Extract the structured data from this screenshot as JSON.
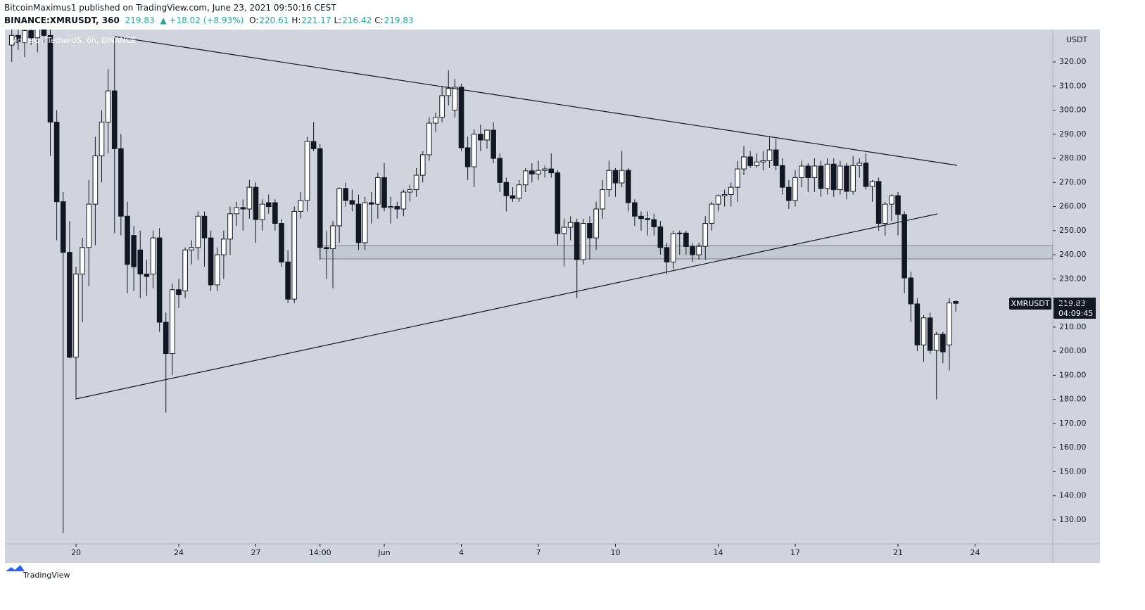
{
  "header": {
    "publisher": "BitcoinMaximus1 published on TradingView.com, June 23, 2021 09:50:16 CEST",
    "symbol": "BINANCE:XMRUSDT, 360",
    "last": "219.83",
    "change": "▲ +18.02 (+8.93%)",
    "ohlc": [
      {
        "label": "O:",
        "value": "220.61"
      },
      {
        "label": "H:",
        "value": "221.17"
      },
      {
        "label": "L:",
        "value": "216.42"
      },
      {
        "label": "C:",
        "value": "219.83"
      }
    ]
  },
  "chart_data": {
    "type": "candlestick",
    "legend": "Monero / TetherUS, 6h, BINANCE",
    "unit": "USDT",
    "price_tag": {
      "symbol": "XMRUSDT",
      "price": "219.83",
      "countdown": "04:09:45"
    },
    "up_color": "#ffffff",
    "down_color": "#131722",
    "grid": false,
    "ylim": [
      120.06,
      333.43
    ],
    "yticks": [
      {
        "value": 130,
        "label": "130.00"
      },
      {
        "value": 140,
        "label": "140.00"
      },
      {
        "value": 150,
        "label": "150.00"
      },
      {
        "value": 160,
        "label": "160.00"
      },
      {
        "value": 170,
        "label": "170.00"
      },
      {
        "value": 180,
        "label": "180.00"
      },
      {
        "value": 190,
        "label": "190.00"
      },
      {
        "value": 200,
        "label": "200.00"
      },
      {
        "value": 210,
        "label": "210.00"
      },
      {
        "value": 220,
        "label": "220.00"
      },
      {
        "value": 230,
        "label": "230.00"
      },
      {
        "value": 240,
        "label": "240.00"
      },
      {
        "value": 250,
        "label": "250.00"
      },
      {
        "value": 260,
        "label": "260.00"
      },
      {
        "value": 270,
        "label": "270.00"
      },
      {
        "value": 280,
        "label": "280.00"
      },
      {
        "value": 290,
        "label": "290.00"
      },
      {
        "value": 300,
        "label": "300.00"
      },
      {
        "value": 310,
        "label": "310.00"
      },
      {
        "value": 320,
        "label": "320.00"
      }
    ],
    "categories": [
      null,
      null,
      null,
      null,
      null,
      null,
      null,
      null,
      null,
      null,
      "20",
      null,
      null,
      null,
      null,
      null,
      null,
      null,
      null,
      null,
      null,
      null,
      null,
      null,
      null,
      null,
      "24",
      null,
      null,
      null,
      null,
      null,
      null,
      null,
      null,
      null,
      null,
      null,
      "27",
      null,
      null,
      null,
      null,
      null,
      null,
      null,
      null,
      null,
      "14:00",
      null,
      null,
      null,
      null,
      null,
      null,
      null,
      null,
      null,
      "Jun",
      null,
      null,
      null,
      null,
      null,
      null,
      null,
      null,
      null,
      null,
      null,
      "4",
      null,
      null,
      null,
      null,
      null,
      null,
      null,
      null,
      null,
      null,
      null,
      "7",
      null,
      null,
      null,
      null,
      null,
      null,
      null,
      null,
      null,
      null,
      null,
      "10",
      null,
      null,
      null,
      null,
      null,
      null,
      null,
      null,
      null,
      null,
      null,
      null,
      null,
      null,
      null,
      "14",
      null,
      null,
      null,
      null,
      null,
      null,
      null,
      null,
      null,
      null,
      null,
      "17",
      null,
      null,
      null,
      null,
      null,
      null,
      null,
      null,
      null,
      null,
      null,
      null,
      null,
      null,
      null,
      "21",
      null,
      null,
      null,
      null,
      null,
      null,
      null,
      null,
      null,
      null,
      null,
      "24"
    ],
    "candles": [
      {
        "open": 327,
        "high": 336,
        "low": 320,
        "close": 331
      },
      {
        "open": 331,
        "high": 338,
        "low": 325,
        "close": 328
      },
      {
        "open": 328,
        "high": 335,
        "low": 322,
        "close": 333
      },
      {
        "open": 333,
        "high": 340,
        "low": 327,
        "close": 330
      },
      {
        "open": 330,
        "high": 337,
        "low": 324,
        "close": 334
      },
      {
        "open": 334,
        "high": 341,
        "low": 328,
        "close": 331
      },
      {
        "open": 331,
        "high": 335,
        "low": 281,
        "close": 295
      },
      {
        "open": 295,
        "high": 300,
        "low": 246,
        "close": 262
      },
      {
        "open": 262,
        "high": 266,
        "low": 124.5,
        "close": 241
      },
      {
        "open": 241,
        "high": 254,
        "low": 197,
        "close": 197.5
      },
      {
        "open": 197.5,
        "high": 235,
        "low": 180,
        "close": 232
      },
      {
        "open": 232,
        "high": 247,
        "low": 212,
        "close": 243
      },
      {
        "open": 243,
        "high": 271,
        "low": 227,
        "close": 261
      },
      {
        "open": 261,
        "high": 289,
        "low": 244,
        "close": 281
      },
      {
        "open": 281,
        "high": 300,
        "low": 270,
        "close": 295
      },
      {
        "open": 295,
        "high": 317,
        "low": 282,
        "close": 308
      },
      {
        "open": 308,
        "high": 330,
        "low": 249,
        "close": 284
      },
      {
        "open": 284,
        "high": 290,
        "low": 248,
        "close": 256
      },
      {
        "open": 256,
        "high": 262,
        "low": 224,
        "close": 236
      },
      {
        "open": 248,
        "high": 252,
        "low": 225,
        "close": 235
      },
      {
        "open": 242,
        "high": 250,
        "low": 222,
        "close": 232
      },
      {
        "open": 232,
        "high": 238,
        "low": 223,
        "close": 231
      },
      {
        "open": 232,
        "high": 250,
        "low": 226,
        "close": 247
      },
      {
        "open": 247,
        "high": 251,
        "low": 208,
        "close": 212
      },
      {
        "open": 212,
        "high": 216,
        "low": 174.5,
        "close": 199
      },
      {
        "open": 199,
        "high": 228,
        "low": 190,
        "close": 225.5
      },
      {
        "open": 225.5,
        "high": 230,
        "low": 218,
        "close": 223.5
      },
      {
        "open": 225,
        "high": 243,
        "low": 222,
        "close": 242
      },
      {
        "open": 242,
        "high": 246,
        "low": 236,
        "close": 243
      },
      {
        "open": 243,
        "high": 258,
        "low": 238,
        "close": 256
      },
      {
        "open": 256,
        "high": 258,
        "low": 235,
        "close": 247
      },
      {
        "open": 247,
        "high": 250,
        "low": 225,
        "close": 227.5
      },
      {
        "open": 227.5,
        "high": 243,
        "low": 225,
        "close": 240
      },
      {
        "open": 240,
        "high": 250,
        "low": 230,
        "close": 246.5
      },
      {
        "open": 246.5,
        "high": 260,
        "low": 240,
        "close": 257
      },
      {
        "open": 257,
        "high": 262,
        "low": 252,
        "close": 259.6
      },
      {
        "open": 259.6,
        "high": 263,
        "low": 250,
        "close": 259
      },
      {
        "open": 259,
        "high": 271,
        "low": 255,
        "close": 268
      },
      {
        "open": 268,
        "high": 270,
        "low": 245,
        "close": 254.6
      },
      {
        "open": 254.6,
        "high": 263,
        "low": 250,
        "close": 261
      },
      {
        "open": 261.6,
        "high": 265,
        "low": 257,
        "close": 260
      },
      {
        "open": 261.6,
        "high": 263,
        "low": 250,
        "close": 253
      },
      {
        "open": 253,
        "high": 255,
        "low": 235,
        "close": 237
      },
      {
        "open": 237,
        "high": 242,
        "low": 220,
        "close": 221.6
      },
      {
        "open": 221.6,
        "high": 260,
        "low": 220,
        "close": 258
      },
      {
        "open": 258,
        "high": 266,
        "low": 255,
        "close": 262.5
      },
      {
        "open": 262.5,
        "high": 289,
        "low": 258,
        "close": 287
      },
      {
        "open": 287,
        "high": 295,
        "low": 283,
        "close": 284
      },
      {
        "open": 284,
        "high": 286,
        "low": 238,
        "close": 243
      },
      {
        "open": 243,
        "high": 250,
        "low": 230,
        "close": 242.5
      },
      {
        "open": 242.5,
        "high": 254,
        "low": 226,
        "close": 252
      },
      {
        "open": 252,
        "high": 268,
        "low": 245,
        "close": 267.5
      },
      {
        "open": 267.5,
        "high": 270,
        "low": 260,
        "close": 262.5
      },
      {
        "open": 262.5,
        "high": 267,
        "low": 258,
        "close": 261
      },
      {
        "open": 261,
        "high": 265,
        "low": 242,
        "close": 245
      },
      {
        "open": 245,
        "high": 264,
        "low": 242,
        "close": 261.6
      },
      {
        "open": 261.6,
        "high": 266,
        "low": 253,
        "close": 261
      },
      {
        "open": 261,
        "high": 274,
        "low": 255,
        "close": 272
      },
      {
        "open": 272,
        "high": 278,
        "low": 258,
        "close": 259.6
      },
      {
        "open": 259.6,
        "high": 264,
        "low": 253,
        "close": 260
      },
      {
        "open": 260,
        "high": 262,
        "low": 255,
        "close": 259
      },
      {
        "open": 259,
        "high": 267,
        "low": 256,
        "close": 266
      },
      {
        "open": 266,
        "high": 269,
        "low": 262,
        "close": 267
      },
      {
        "open": 267,
        "high": 276,
        "low": 264,
        "close": 273
      },
      {
        "open": 273,
        "high": 283,
        "low": 270,
        "close": 281.5
      },
      {
        "open": 281.5,
        "high": 297,
        "low": 279,
        "close": 294.6
      },
      {
        "open": 294.6,
        "high": 299,
        "low": 291,
        "close": 297
      },
      {
        "open": 297,
        "high": 310,
        "low": 295,
        "close": 306
      },
      {
        "open": 306,
        "high": 316.5,
        "low": 302,
        "close": 309
      },
      {
        "open": 300,
        "high": 313,
        "low": 297,
        "close": 309.5
      },
      {
        "open": 309.5,
        "high": 311,
        "low": 283,
        "close": 284.4
      },
      {
        "open": 284.4,
        "high": 289,
        "low": 271,
        "close": 276.5
      },
      {
        "open": 276.5,
        "high": 292,
        "low": 268,
        "close": 290
      },
      {
        "open": 290,
        "high": 294,
        "low": 283,
        "close": 287.6
      },
      {
        "open": 287.6,
        "high": 292,
        "low": 284,
        "close": 291.7
      },
      {
        "open": 291.7,
        "high": 295,
        "low": 278,
        "close": 280
      },
      {
        "open": 280,
        "high": 282,
        "low": 266,
        "close": 270
      },
      {
        "open": 270,
        "high": 272,
        "low": 258,
        "close": 264.5
      },
      {
        "open": 264.5,
        "high": 268,
        "low": 262,
        "close": 263.4
      },
      {
        "open": 263.4,
        "high": 271,
        "low": 262,
        "close": 269
      },
      {
        "open": 269,
        "high": 276,
        "low": 266,
        "close": 274.8
      },
      {
        "open": 274.8,
        "high": 278,
        "low": 270,
        "close": 273.5
      },
      {
        "open": 273.5,
        "high": 279,
        "low": 271,
        "close": 275
      },
      {
        "open": 275,
        "high": 277,
        "low": 272,
        "close": 275.6
      },
      {
        "open": 275.6,
        "high": 282,
        "low": 272,
        "close": 274
      },
      {
        "open": 274,
        "high": 275,
        "low": 244,
        "close": 248.8
      },
      {
        "open": 248.8,
        "high": 255,
        "low": 235,
        "close": 251.4
      },
      {
        "open": 251.4,
        "high": 256,
        "low": 246,
        "close": 253.4
      },
      {
        "open": 253.4,
        "high": 255,
        "low": 222,
        "close": 238
      },
      {
        "open": 238,
        "high": 255,
        "low": 236,
        "close": 253
      },
      {
        "open": 253,
        "high": 256,
        "low": 238,
        "close": 247
      },
      {
        "open": 247,
        "high": 262,
        "low": 242,
        "close": 259
      },
      {
        "open": 259,
        "high": 271,
        "low": 255,
        "close": 267
      },
      {
        "open": 267,
        "high": 279,
        "low": 264,
        "close": 275
      },
      {
        "open": 275,
        "high": 276,
        "low": 264,
        "close": 269.8
      },
      {
        "open": 269.8,
        "high": 283,
        "low": 268,
        "close": 275
      },
      {
        "open": 275,
        "high": 276,
        "low": 258,
        "close": 261.6
      },
      {
        "open": 261.6,
        "high": 263,
        "low": 252,
        "close": 256
      },
      {
        "open": 256,
        "high": 258,
        "low": 250,
        "close": 255
      },
      {
        "open": 255,
        "high": 258,
        "low": 248,
        "close": 254.6
      },
      {
        "open": 254.6,
        "high": 257,
        "low": 248,
        "close": 251.6
      },
      {
        "open": 251.6,
        "high": 254,
        "low": 240,
        "close": 243
      },
      {
        "open": 243,
        "high": 245,
        "low": 232,
        "close": 237
      },
      {
        "open": 237,
        "high": 250,
        "low": 234,
        "close": 248.8
      },
      {
        "open": 248.8,
        "high": 250,
        "low": 240,
        "close": 249
      },
      {
        "open": 249,
        "high": 250,
        "low": 240,
        "close": 243.4
      },
      {
        "open": 243.4,
        "high": 245,
        "low": 237,
        "close": 240
      },
      {
        "open": 240,
        "high": 245,
        "low": 238,
        "close": 243.5
      },
      {
        "open": 243.5,
        "high": 256,
        "low": 238,
        "close": 253
      },
      {
        "open": 253,
        "high": 262,
        "low": 250,
        "close": 261
      },
      {
        "open": 261,
        "high": 265,
        "low": 258,
        "close": 264.5
      },
      {
        "open": 264.5,
        "high": 267,
        "low": 260,
        "close": 265
      },
      {
        "open": 265,
        "high": 270,
        "low": 260,
        "close": 268
      },
      {
        "open": 268,
        "high": 279,
        "low": 262,
        "close": 275.6
      },
      {
        "open": 275.6,
        "high": 285,
        "low": 273,
        "close": 280.6
      },
      {
        "open": 280.6,
        "high": 283,
        "low": 276,
        "close": 277
      },
      {
        "open": 277,
        "high": 282,
        "low": 276,
        "close": 278.5
      },
      {
        "open": 278.5,
        "high": 283,
        "low": 275,
        "close": 279
      },
      {
        "open": 279,
        "high": 289,
        "low": 276,
        "close": 283.5
      },
      {
        "open": 283.5,
        "high": 288,
        "low": 275,
        "close": 277
      },
      {
        "open": 277,
        "high": 280,
        "low": 265,
        "close": 268
      },
      {
        "open": 268,
        "high": 271,
        "low": 259,
        "close": 262.5
      },
      {
        "open": 262.5,
        "high": 275,
        "low": 260,
        "close": 272
      },
      {
        "open": 272,
        "high": 279,
        "low": 268,
        "close": 276.8
      },
      {
        "open": 276.8,
        "high": 278,
        "low": 266,
        "close": 272
      },
      {
        "open": 272,
        "high": 280,
        "low": 266,
        "close": 276.8
      },
      {
        "open": 276.8,
        "high": 279,
        "low": 264,
        "close": 267.5
      },
      {
        "open": 267.5,
        "high": 280,
        "low": 265,
        "close": 277.6
      },
      {
        "open": 277.6,
        "high": 280,
        "low": 264,
        "close": 267
      },
      {
        "open": 267,
        "high": 279,
        "low": 265,
        "close": 276.8
      },
      {
        "open": 276.8,
        "high": 278,
        "low": 263,
        "close": 266.3
      },
      {
        "open": 266.3,
        "high": 281,
        "low": 265,
        "close": 277
      },
      {
        "open": 277,
        "high": 280,
        "low": 272,
        "close": 278
      },
      {
        "open": 278,
        "high": 282,
        "low": 267,
        "close": 268.3
      },
      {
        "open": 268.3,
        "high": 271,
        "low": 262,
        "close": 270.4
      },
      {
        "open": 270.4,
        "high": 272,
        "low": 250,
        "close": 253
      },
      {
        "open": 253,
        "high": 262,
        "low": 248,
        "close": 261
      },
      {
        "open": 261,
        "high": 265,
        "low": 254,
        "close": 264.5
      },
      {
        "open": 264.5,
        "high": 266,
        "low": 248,
        "close": 256.7
      },
      {
        "open": 256.7,
        "high": 258,
        "low": 224,
        "close": 230.4
      },
      {
        "open": 230.4,
        "high": 233,
        "low": 212,
        "close": 219.6
      },
      {
        "open": 219.6,
        "high": 222,
        "low": 200,
        "close": 202.6
      },
      {
        "open": 202.6,
        "high": 215,
        "low": 195.5,
        "close": 213.8
      },
      {
        "open": 213.8,
        "high": 216,
        "low": 199,
        "close": 200.3
      },
      {
        "open": 200.3,
        "high": 208,
        "low": 180,
        "close": 207
      },
      {
        "open": 207,
        "high": 208,
        "low": 195,
        "close": 199.7
      },
      {
        "open": 202.6,
        "high": 222,
        "low": 192,
        "close": 220
      },
      {
        "open": 220.61,
        "high": 221.17,
        "low": 216.42,
        "close": 219.83
      },
      null,
      null,
      null
    ]
  },
  "footer": {
    "brand": "TradingView"
  }
}
